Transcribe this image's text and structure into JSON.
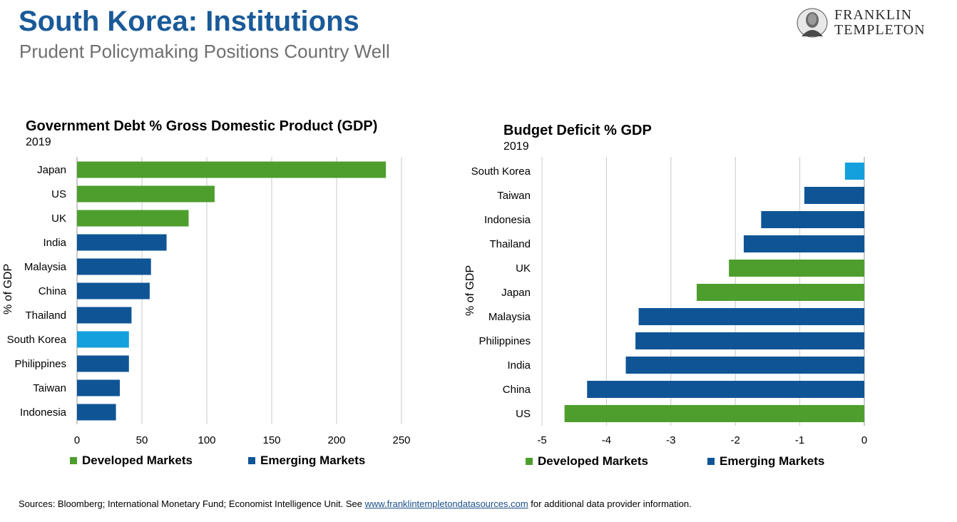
{
  "header": {
    "title": "South Korea: Institutions",
    "subtitle": "Prudent Policymaking Positions Country Well",
    "logo_line1": "FRANKLIN",
    "logo_line2": "TEMPLETON"
  },
  "colors": {
    "developed": "#4e9e2e",
    "emerging": "#0f5596",
    "south_korea": "#14a0dc",
    "grid": "#c8c8c8",
    "title": "#1a5a99"
  },
  "legend": {
    "developed": "Developed Markets",
    "emerging": "Emerging Markets"
  },
  "footer": {
    "prefix": "Sources: Bloomberg; International Monetary Fund; Economist Intelligence Unit. See ",
    "link": "www.franklintempletondatasources.com",
    "suffix": " for additional data provider information."
  },
  "chart_data": [
    {
      "type": "bar",
      "orientation": "horizontal",
      "title": "Government Debt % Gross Domestic Product (GDP)",
      "subtitle": "2019",
      "ylabel": "% of GDP",
      "xlim": [
        0,
        250
      ],
      "xticks": [
        0,
        50,
        100,
        150,
        200,
        250
      ],
      "grid": true,
      "legend_position": "bottom",
      "categories": [
        "Japan",
        "US",
        "UK",
        "India",
        "Malaysia",
        "China",
        "Thailand",
        "South Korea",
        "Philippines",
        "Taiwan",
        "Indonesia"
      ],
      "values": [
        238,
        106,
        86,
        69,
        57,
        56,
        42,
        40,
        40,
        33,
        30
      ],
      "groups": [
        "developed",
        "developed",
        "developed",
        "emerging",
        "emerging",
        "emerging",
        "emerging",
        "highlight",
        "emerging",
        "emerging",
        "emerging"
      ]
    },
    {
      "type": "bar",
      "orientation": "horizontal",
      "title": "Budget Deficit % GDP",
      "subtitle": "2019",
      "ylabel": "% of GDP",
      "xlim": [
        -5,
        0
      ],
      "xticks": [
        -5,
        -4,
        -3,
        -2,
        -1,
        0
      ],
      "grid": true,
      "legend_position": "bottom",
      "categories": [
        "South Korea",
        "Taiwan",
        "Indonesia",
        "Thailand",
        "UK",
        "Japan",
        "Malaysia",
        "Philippines",
        "India",
        "China",
        "US"
      ],
      "values": [
        -0.3,
        -0.93,
        -1.6,
        -1.87,
        -2.1,
        -2.6,
        -3.5,
        -3.55,
        -3.7,
        -4.3,
        -4.65
      ],
      "groups": [
        "highlight",
        "emerging",
        "emerging",
        "emerging",
        "developed",
        "developed",
        "emerging",
        "emerging",
        "emerging",
        "emerging",
        "developed"
      ]
    }
  ]
}
